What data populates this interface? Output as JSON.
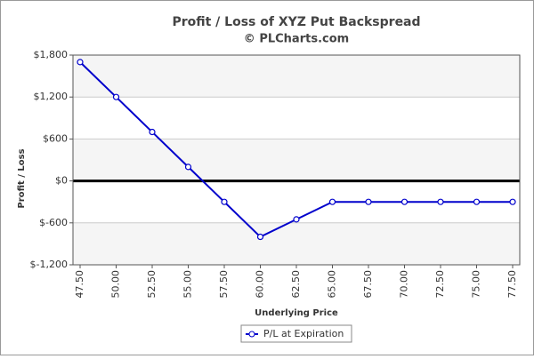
{
  "chart_data": {
    "type": "line",
    "title": "Profit / Loss of XYZ Put Backspread",
    "subtitle": "© PLCharts.com",
    "x_label": "Underlying Price",
    "y_label": "Profit / Loss",
    "categories": [
      "47.50",
      "50.00",
      "52.50",
      "55.00",
      "57.50",
      "60.00",
      "62.50",
      "65.00",
      "67.50",
      "70.00",
      "72.50",
      "75.00",
      "77.50"
    ],
    "series": [
      {
        "name": "P/L at Expiration",
        "color": "#0000cc",
        "values": [
          1700,
          1200,
          700,
          200,
          -300,
          -800,
          -550,
          -300,
          -300,
          -300,
          -300,
          -300,
          -300
        ]
      }
    ],
    "ylim": [
      -1200,
      1800
    ],
    "yticks": [
      {
        "value": -1200,
        "label": "$-1,200"
      },
      {
        "value": -600,
        "label": "$-600"
      },
      {
        "value": 0,
        "label": "$0"
      },
      {
        "value": 600,
        "label": "$600"
      },
      {
        "value": 1200,
        "label": "$1,200"
      },
      {
        "value": 1800,
        "label": "$1,800"
      }
    ],
    "grid": true,
    "legend": "bottom"
  }
}
